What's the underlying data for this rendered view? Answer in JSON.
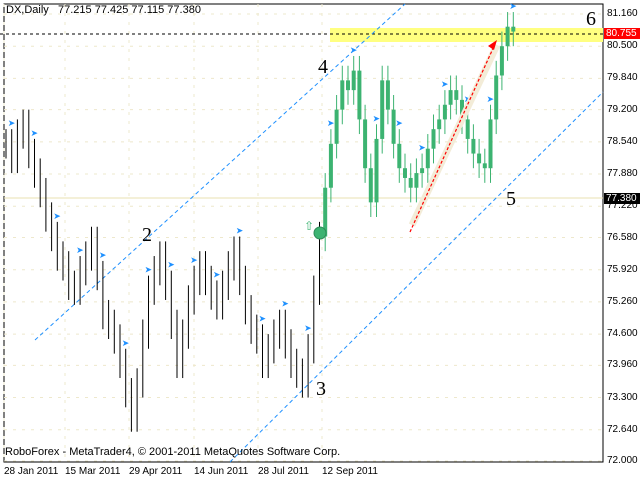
{
  "header": {
    "symbol": "DX,Daily",
    "ohlc": "77.215 77.425 77.115 77.380"
  },
  "footer": {
    "copyright": "RoboForex - MetaTrader4, © 2001-2011 MetaQuotes Software Corp."
  },
  "price_labels": [
    "81.160",
    "80.500",
    "79.840",
    "79.200",
    "78.540",
    "77.880",
    "77.220",
    "76.580",
    "75.920",
    "75.260",
    "74.600",
    "73.960",
    "73.300",
    "72.640",
    "72.000"
  ],
  "current_price": "77.380",
  "target_price": "80.755",
  "date_labels": [
    "28 Jan 2011",
    "15 Mar 2011",
    "29 Apr 2011",
    "14 Jun 2011",
    "28 Jul 2011",
    "12 Sep 2011"
  ],
  "wave_labels": [
    "2",
    "3",
    "4",
    "5",
    "6"
  ],
  "colors": {
    "bear": "#000000",
    "bull": "#3cb371",
    "channel": "#1e90ff",
    "target_band": "#ffff80",
    "target_tag": "#ff0000",
    "current_tag": "#000000",
    "arrow": "#ff0000"
  },
  "chart_data": {
    "type": "bar",
    "ylim": [
      72.0,
      81.16
    ],
    "closes": [
      78.5,
      78.2,
      78.7,
      78.9,
      78.3,
      77.9,
      77.5,
      77.0,
      76.6,
      76.2,
      76.0,
      75.6,
      75.5,
      75.9,
      76.2,
      76.5,
      75.8,
      75.0,
      74.8,
      74.5,
      74.0,
      73.4,
      72.9,
      73.6,
      74.6,
      75.5,
      75.9,
      76.2,
      75.6,
      74.8,
      74.0,
      74.6,
      75.3,
      75.7,
      76.0,
      75.7,
      75.4,
      75.2,
      75.6,
      76.0,
      76.3,
      75.7,
      75.1,
      74.7,
      74.5,
      74.0,
      74.3,
      74.6,
      74.8,
      74.4,
      74.0,
      73.8,
      73.6,
      74.3,
      75.5,
      76.6,
      77.6,
      78.5,
      79.2,
      79.8,
      79.6,
      80.0,
      79.0,
      78.0,
      77.3,
      78.6,
      79.8,
      79.2,
      78.5,
      78.0,
      77.8,
      77.6,
      77.9,
      78.0,
      78.4,
      78.8,
      79.0,
      79.3,
      79.6,
      79.4,
      79.0,
      78.6,
      78.3,
      78.1,
      78.0,
      79.0,
      79.9,
      80.5,
      80.9,
      80.8
    ],
    "bull_from_index": 56
  }
}
